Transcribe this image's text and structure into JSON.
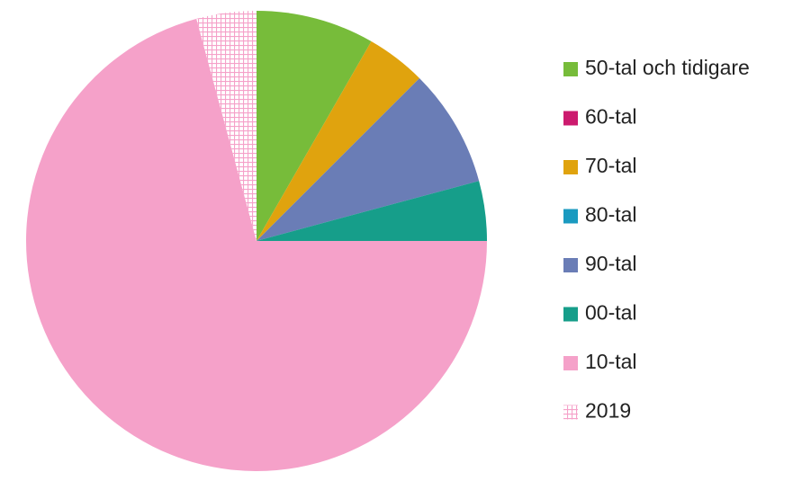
{
  "chart_data": {
    "type": "pie",
    "categories": [
      "50-tal och tidigare",
      "60-tal",
      "70-tal",
      "80-tal",
      "90-tal",
      "00-tal",
      "10-tal",
      "2019"
    ],
    "values": [
      8.3,
      0,
      4.2,
      0,
      8.3,
      4.2,
      70.8,
      4.2
    ],
    "colors": [
      "#77bc3a",
      "#cc1a6e",
      "#e0a30e",
      "#1a9ac0",
      "#6a7db6",
      "#169e8a",
      "#f5a1c9",
      "#f5a1c9"
    ],
    "patterns": [
      null,
      null,
      null,
      null,
      null,
      null,
      null,
      "grid"
    ],
    "legend": "right"
  }
}
